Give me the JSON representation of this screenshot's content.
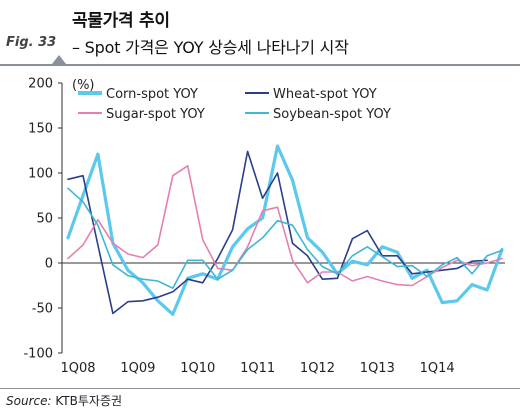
{
  "header": {
    "fig_label": "Fig. 33",
    "title": "곡물가격 추이",
    "subtitle": "– Spot 가격은 YOY 상승세 나타나기 시작"
  },
  "source": {
    "label": "Source:",
    "text": "KTB투자증권"
  },
  "chart_data": {
    "type": "line",
    "ylabel": "(%)",
    "ylim": [
      -100,
      200
    ],
    "yticks": [
      -100,
      -50,
      0,
      50,
      100,
      150,
      200
    ],
    "xlim": [
      0,
      28
    ],
    "xticks": [
      {
        "label": "1Q08",
        "x": 0
      },
      {
        "label": "1Q09",
        "x": 4
      },
      {
        "label": "1Q10",
        "x": 8
      },
      {
        "label": "1Q11",
        "x": 12
      },
      {
        "label": "1Q12",
        "x": 16
      },
      {
        "label": "1Q13",
        "x": 20
      },
      {
        "label": "1Q14",
        "x": 24
      }
    ],
    "grid": false,
    "legend_position": "top",
    "series": [
      {
        "name": "Corn-spot YOY",
        "color": "#5cc8ec",
        "width": 3.2,
        "points": [
          [
            0,
            28
          ],
          [
            1,
            75
          ],
          [
            2,
            121
          ],
          [
            3,
            22
          ],
          [
            4,
            -8
          ],
          [
            5,
            -22
          ],
          [
            6,
            -42
          ],
          [
            7,
            -57
          ],
          [
            8,
            -17
          ],
          [
            9,
            -12
          ],
          [
            10,
            -18
          ],
          [
            11,
            18
          ],
          [
            12,
            38
          ],
          [
            13,
            50
          ],
          [
            14,
            130
          ],
          [
            15,
            92
          ],
          [
            16,
            28
          ],
          [
            17,
            12
          ],
          [
            18,
            -12
          ],
          [
            19,
            2
          ],
          [
            20,
            -2
          ],
          [
            21,
            18
          ],
          [
            22,
            12
          ],
          [
            23,
            -17
          ],
          [
            24,
            -8
          ],
          [
            25,
            -44
          ],
          [
            26,
            -42
          ],
          [
            27,
            -24
          ],
          [
            28,
            -30
          ],
          [
            29,
            15
          ]
        ]
      },
      {
        "name": "Wheat-spot YOY",
        "color": "#2a3f8a",
        "width": 1.6,
        "points": [
          [
            0,
            93
          ],
          [
            1,
            97
          ],
          [
            2,
            20
          ],
          [
            3,
            -56
          ],
          [
            4,
            -43
          ],
          [
            5,
            -42
          ],
          [
            6,
            -38
          ],
          [
            7,
            -32
          ],
          [
            8,
            -18
          ],
          [
            9,
            -22
          ],
          [
            10,
            5
          ],
          [
            11,
            37
          ],
          [
            12,
            124
          ],
          [
            13,
            72
          ],
          [
            14,
            100
          ],
          [
            15,
            22
          ],
          [
            16,
            8
          ],
          [
            17,
            -18
          ],
          [
            18,
            -17
          ],
          [
            19,
            27
          ],
          [
            20,
            36
          ],
          [
            21,
            8
          ],
          [
            22,
            8
          ],
          [
            23,
            -12
          ],
          [
            24,
            -10
          ],
          [
            25,
            -8
          ],
          [
            26,
            -6
          ],
          [
            27,
            2
          ],
          [
            28,
            3
          ]
        ]
      },
      {
        "name": "Sugar-spot YOY",
        "color": "#e57fb2",
        "width": 1.6,
        "points": [
          [
            0,
            5
          ],
          [
            1,
            20
          ],
          [
            2,
            48
          ],
          [
            3,
            22
          ],
          [
            4,
            10
          ],
          [
            5,
            6
          ],
          [
            6,
            20
          ],
          [
            7,
            97
          ],
          [
            8,
            108
          ],
          [
            9,
            26
          ],
          [
            10,
            -6
          ],
          [
            11,
            -8
          ],
          [
            12,
            18
          ],
          [
            13,
            58
          ],
          [
            14,
            62
          ],
          [
            15,
            3
          ],
          [
            16,
            -22
          ],
          [
            17,
            -10
          ],
          [
            18,
            -10
          ],
          [
            19,
            -20
          ],
          [
            20,
            -15
          ],
          [
            21,
            -20
          ],
          [
            22,
            -24
          ],
          [
            23,
            -25
          ],
          [
            24,
            -15
          ],
          [
            25,
            -5
          ],
          [
            26,
            3
          ],
          [
            27,
            -3
          ],
          [
            28,
            0
          ],
          [
            29,
            5
          ]
        ]
      },
      {
        "name": "Soybean-spot YOY",
        "color": "#3fb6d6",
        "width": 1.6,
        "points": [
          [
            0,
            83
          ],
          [
            1,
            68
          ],
          [
            2,
            42
          ],
          [
            3,
            -2
          ],
          [
            4,
            -14
          ],
          [
            5,
            -18
          ],
          [
            6,
            -20
          ],
          [
            7,
            -28
          ],
          [
            8,
            3
          ],
          [
            9,
            3
          ],
          [
            10,
            -18
          ],
          [
            11,
            -8
          ],
          [
            12,
            15
          ],
          [
            13,
            28
          ],
          [
            14,
            47
          ],
          [
            15,
            42
          ],
          [
            16,
            15
          ],
          [
            17,
            -4
          ],
          [
            18,
            -12
          ],
          [
            19,
            8
          ],
          [
            20,
            18
          ],
          [
            21,
            7
          ],
          [
            22,
            -4
          ],
          [
            23,
            -3
          ],
          [
            24,
            -15
          ],
          [
            25,
            -2
          ],
          [
            26,
            6
          ],
          [
            27,
            -12
          ],
          [
            28,
            8
          ],
          [
            29,
            14
          ]
        ]
      }
    ]
  }
}
